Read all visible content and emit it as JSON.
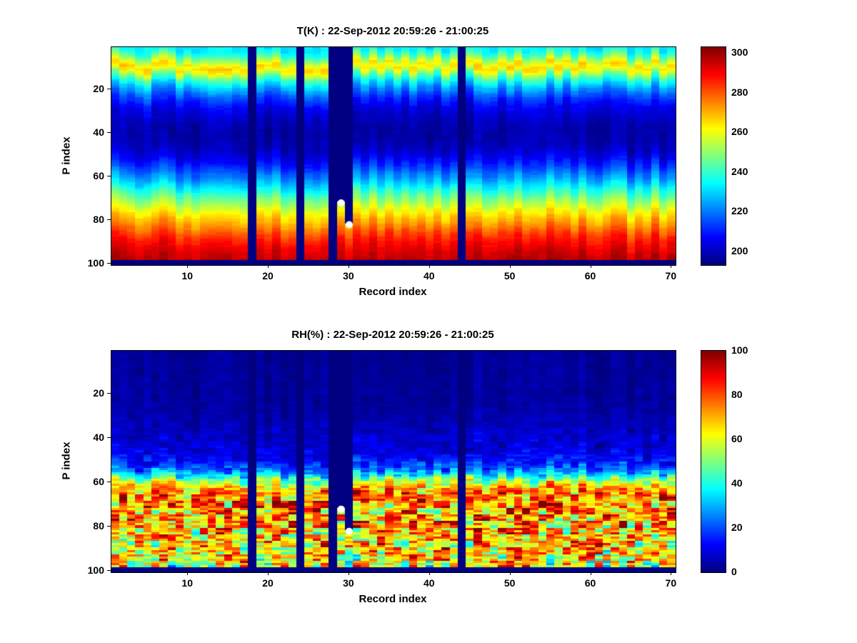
{
  "figure": {
    "background": "#ffffff"
  },
  "chart_data": [
    {
      "type": "heatmap",
      "title": "T(K) : 22-Sep-2012 20:59:26 - 21:00:25",
      "xlabel": "Record index",
      "ylabel": "P index",
      "x_range": [
        1,
        70
      ],
      "y_range": [
        1,
        100
      ],
      "y_axis_direction": "reverse",
      "x_ticks": [
        10,
        20,
        30,
        40,
        50,
        60,
        70
      ],
      "y_ticks": [
        20,
        40,
        60,
        80,
        100
      ],
      "colormap": "jet",
      "color_range": [
        193,
        303
      ],
      "colorbar_ticks": [
        200,
        220,
        240,
        260,
        280,
        300
      ],
      "profile_p": [
        1,
        3,
        6,
        9,
        11,
        14,
        18,
        22,
        27,
        33,
        40,
        46,
        52,
        58,
        64,
        70,
        76,
        82,
        88,
        93,
        97,
        100
      ],
      "profile_v": [
        232,
        238,
        252,
        266,
        262,
        244,
        228,
        216,
        206,
        200,
        197,
        199,
        206,
        218,
        232,
        248,
        262,
        274,
        286,
        292,
        296,
        298
      ],
      "noise": {
        "record_shift": 2.5,
        "record_offset": 3,
        "coarse_block": 4,
        "coarse_weight": 0.4,
        "fine_weight": 0.5,
        "amp_p": [
          1,
          100
        ],
        "amp_v": [
          2.5,
          2.5
        ]
      },
      "missing_records": [
        18,
        24,
        28,
        44
      ],
      "partial_missing_records": [
        {
          "record": 29,
          "missing_to_p": 71
        },
        {
          "record": 30,
          "missing_to_p": 81
        }
      ],
      "missing_bottom_rows": 2,
      "markers": [
        {
          "x": 29,
          "y": 72
        },
        {
          "x": 30,
          "y": 82
        }
      ],
      "marker_color": "#ffffff"
    },
    {
      "type": "heatmap",
      "title": "RH(%) : 22-Sep-2012 20:59:26 - 21:00:25",
      "xlabel": "Record index",
      "ylabel": "P index",
      "x_range": [
        1,
        70
      ],
      "y_range": [
        1,
        100
      ],
      "y_axis_direction": "reverse",
      "x_ticks": [
        10,
        20,
        30,
        40,
        50,
        60,
        70
      ],
      "y_ticks": [
        20,
        40,
        60,
        80,
        100
      ],
      "colormap": "jet",
      "color_range": [
        0,
        100
      ],
      "colorbar_ticks": [
        0,
        20,
        40,
        60,
        80,
        100
      ],
      "profile_p": [
        1,
        25,
        33,
        38,
        44,
        50,
        54,
        57,
        60,
        62,
        65,
        70,
        78,
        85,
        92,
        97,
        100
      ],
      "profile_v": [
        2,
        3,
        5,
        7,
        9,
        13,
        22,
        38,
        58,
        70,
        76,
        74,
        72,
        70,
        66,
        60,
        55
      ],
      "noise": {
        "record_shift": 1.5,
        "record_offset": 2,
        "coarse_block": 3,
        "coarse_weight": 0.7,
        "fine_weight": 0.5,
        "amp_p": [
          1,
          30,
          40,
          48,
          54,
          58,
          62,
          66,
          72,
          100
        ],
        "amp_v": [
          1.5,
          2.5,
          5,
          7,
          10,
          14,
          18,
          26,
          30,
          32
        ]
      },
      "missing_records": [
        18,
        24,
        28,
        44
      ],
      "partial_missing_records": [
        {
          "record": 29,
          "missing_to_p": 71
        },
        {
          "record": 30,
          "missing_to_p": 81
        }
      ],
      "missing_bottom_rows": 2,
      "markers": [
        {
          "x": 29,
          "y": 72
        },
        {
          "x": 30,
          "y": 82
        }
      ],
      "marker_color": "#ffffff"
    }
  ]
}
